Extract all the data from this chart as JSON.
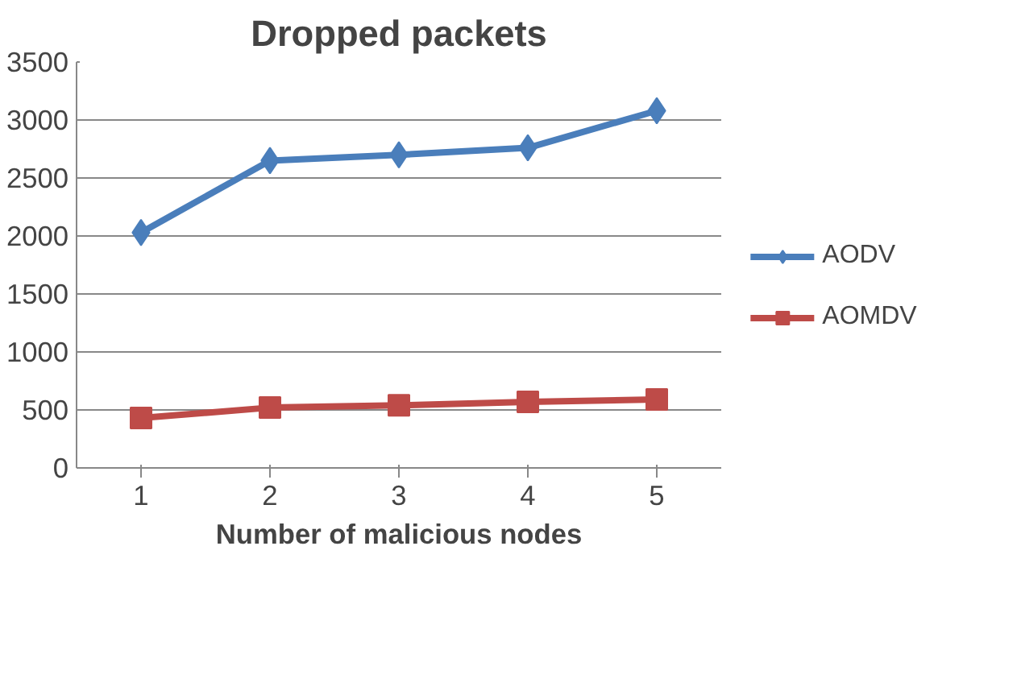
{
  "chart_data": {
    "type": "line",
    "title": "Dropped packets",
    "xlabel": "Number of malicious nodes",
    "categories": [
      "1",
      "2",
      "3",
      "4",
      "5"
    ],
    "series": [
      {
        "name": "AODV",
        "color": "#4a7ebb",
        "marker": "diamond",
        "values": [
          2030,
          2650,
          2700,
          2760,
          3080
        ]
      },
      {
        "name": "AOMDV",
        "color": "#be4b48",
        "marker": "square",
        "values": [
          430,
          520,
          540,
          570,
          590
        ]
      }
    ],
    "ylim": [
      0,
      3500
    ],
    "yticks": [
      0,
      500,
      1000,
      1500,
      2000,
      2500,
      3000,
      3500
    ],
    "grid": "y",
    "legend": "right"
  }
}
